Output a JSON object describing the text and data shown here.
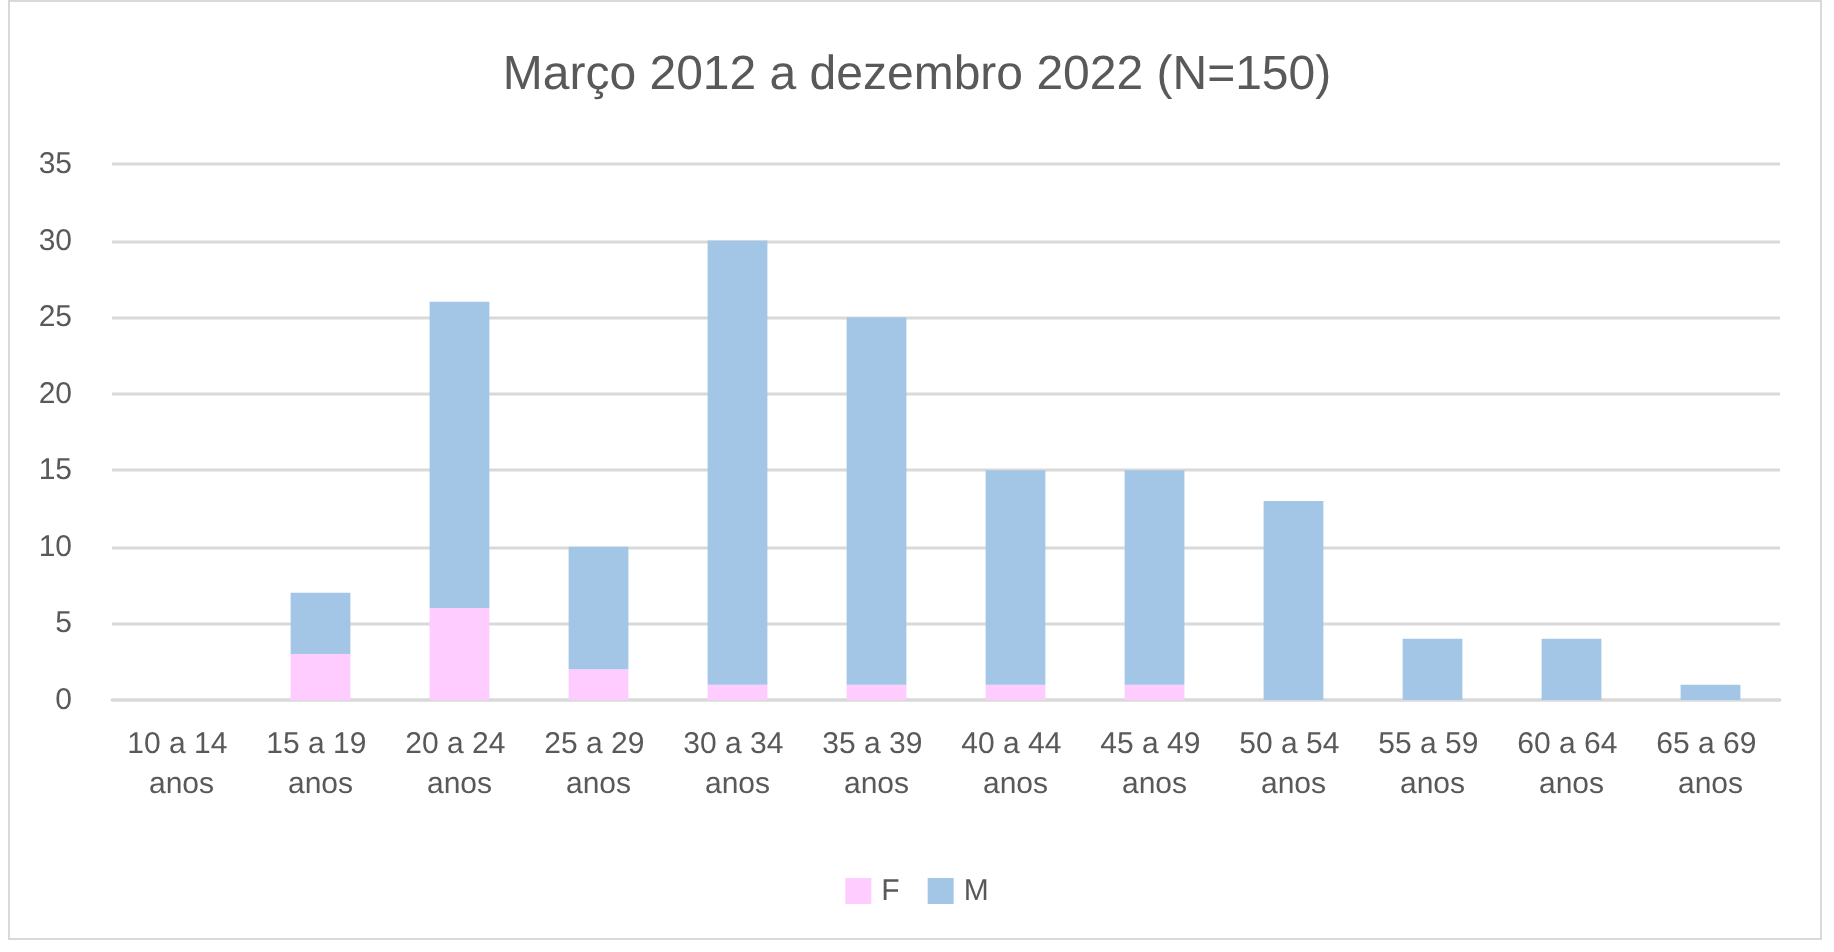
{
  "chart_data": {
    "type": "bar",
    "title": "Março 2012 a dezembro 2022 (N=150)",
    "categories": [
      "10 a 14 anos",
      "15 a 19 anos",
      "20 a 24 anos",
      "25 a 29 anos",
      "30 a 34 anos",
      "35 a 39 anos",
      "40 a 44 anos",
      "45 a 49 anos",
      "50 a 54 anos",
      "55 a 59 anos",
      "60 a 64 anos",
      "65 a 69 anos"
    ],
    "series": [
      {
        "name": "F",
        "color": "#ffccff",
        "values": [
          0,
          3,
          6,
          2,
          1,
          1,
          1,
          1,
          0,
          0,
          0,
          0
        ]
      },
      {
        "name": "M",
        "color": "#a3c6e6",
        "values": [
          0,
          4,
          20,
          8,
          29,
          24,
          14,
          14,
          13,
          4,
          4,
          1
        ]
      }
    ],
    "stacked": true,
    "ylim": [
      0,
      35
    ],
    "yticks": [
      0,
      5,
      10,
      15,
      20,
      25,
      30,
      35
    ],
    "grid": "y",
    "legend": "bottom"
  }
}
